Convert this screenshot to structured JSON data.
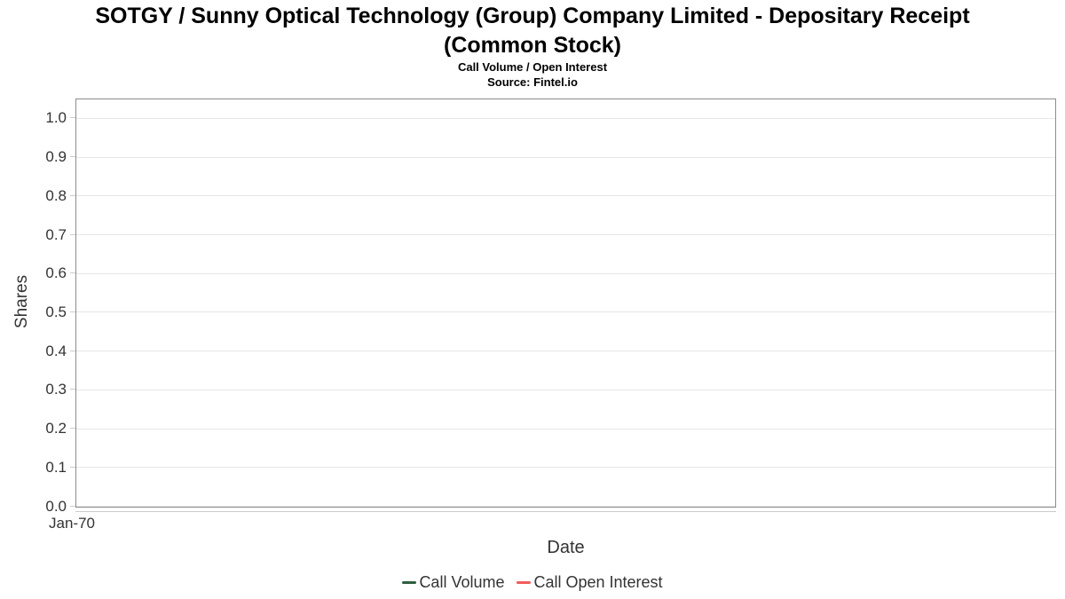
{
  "header": {
    "title_line1": "SOTGY / Sunny Optical Technology (Group) Company Limited - Depositary Receipt",
    "title_line2": "(Common Stock)",
    "subtitle": "Call Volume / Open Interest",
    "source": "Source: Fintel.io"
  },
  "chart_data": {
    "type": "line",
    "title": "SOTGY / Sunny Optical Technology (Group) Company Limited - Depositary Receipt (Common Stock)",
    "subtitle": "Call Volume / Open Interest",
    "source": "Source: Fintel.io",
    "xlabel": "Date",
    "ylabel": "Shares",
    "ylim": [
      0,
      1.05
    ],
    "grid": "horizontal",
    "legend_position": "bottom-center",
    "yticks": [
      {
        "label": "0.0",
        "value": 0.0
      },
      {
        "label": "0.1",
        "value": 0.1
      },
      {
        "label": "0.2",
        "value": 0.2
      },
      {
        "label": "0.3",
        "value": 0.3
      },
      {
        "label": "0.4",
        "value": 0.4
      },
      {
        "label": "0.5",
        "value": 0.5
      },
      {
        "label": "0.6",
        "value": 0.6
      },
      {
        "label": "0.7",
        "value": 0.7
      },
      {
        "label": "0.8",
        "value": 0.8
      },
      {
        "label": "0.9",
        "value": 0.9
      },
      {
        "label": "1.0",
        "value": 1.0
      }
    ],
    "xticks": [
      "Jan-70"
    ],
    "series": [
      {
        "name": "Call Volume",
        "color": "#2d5f41",
        "x": [],
        "values": []
      },
      {
        "name": "Call Open Interest",
        "color": "#f45b5b",
        "x": [],
        "values": []
      }
    ]
  },
  "colors": {
    "gridline": "#e6e6e6",
    "plot_border": "#8c8c8c",
    "axis_line": "#cccccc",
    "tick_text": "#333333",
    "title_text": "#000000"
  }
}
